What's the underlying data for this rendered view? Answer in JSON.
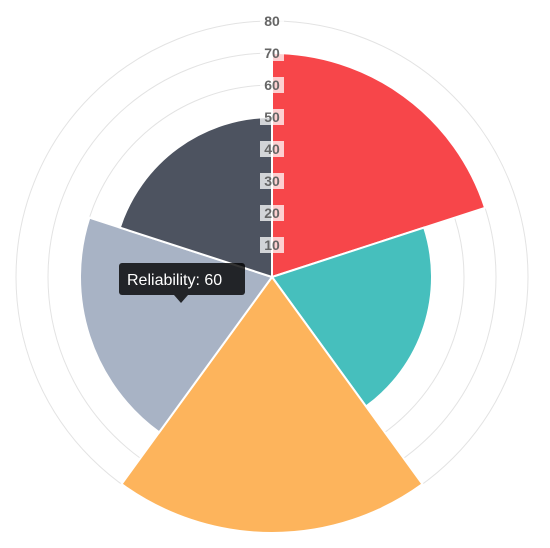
{
  "chart_data": {
    "type": "polarArea",
    "categories": [
      "",
      "",
      "",
      "",
      ""
    ],
    "values": [
      70,
      50,
      80,
      60,
      50
    ],
    "colors": [
      "#F7464A",
      "#46BFBD",
      "#FDB45C",
      "#A8B3C5",
      "#4D5360"
    ],
    "ticks": [
      "10",
      "20",
      "30",
      "40",
      "50",
      "60",
      "70",
      "80"
    ],
    "rmax": 80,
    "grid": true,
    "start_angle_deg": 0
  },
  "tooltip": {
    "label": "Reliability: 60",
    "slice_index": 3
  }
}
